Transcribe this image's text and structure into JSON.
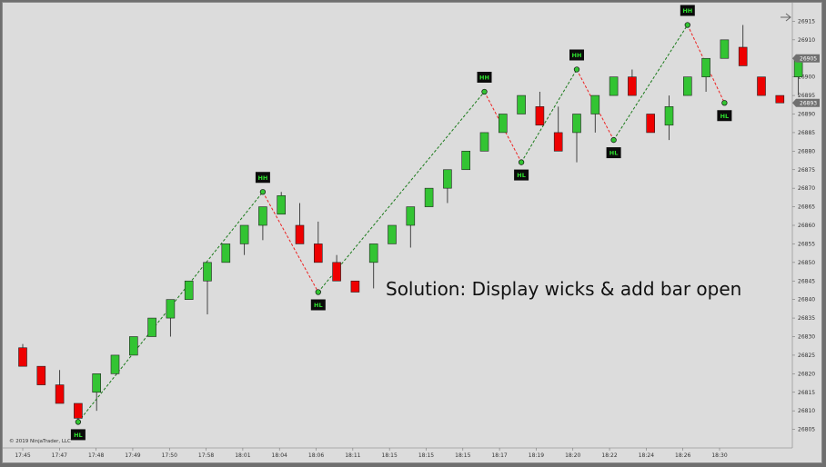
{
  "chart_data": {
    "type": "candlestick",
    "ylim": [
      26800,
      26920
    ],
    "y_ticks": [
      26805,
      26810,
      26815,
      26820,
      26825,
      26830,
      26835,
      26840,
      26845,
      26850,
      26855,
      26860,
      26865,
      26870,
      26875,
      26880,
      26885,
      26890,
      26895,
      26900,
      26905,
      26910,
      26915
    ],
    "x_labels": [
      "17:45",
      "17:47",
      "17:48",
      "17:49",
      "17:50",
      "17:58",
      "18:01",
      "18:04",
      "18:06",
      "18:11",
      "18:15",
      "18:15",
      "18:15",
      "18:17",
      "18:19",
      "18:20",
      "18:22",
      "18:24",
      "18:26",
      "18:30"
    ],
    "price_badges": [
      26905,
      26893
    ],
    "colors": {
      "up": "#33c433",
      "down": "#ee0000",
      "up_swing": "#1a7a1a",
      "down_swing": "#ee2222"
    },
    "bars": [
      {
        "o": 26827,
        "c": 26822,
        "h": 26828,
        "l": 26822
      },
      {
        "o": 26822,
        "c": 26817,
        "h": 26822,
        "l": 26817
      },
      {
        "o": 26817,
        "c": 26812,
        "h": 26821,
        "l": 26812
      },
      {
        "o": 26812,
        "c": 26808,
        "h": 26812,
        "l": 26807
      },
      {
        "o": 26815,
        "c": 26820,
        "h": 26820,
        "l": 26810
      },
      {
        "o": 26820,
        "c": 26825,
        "h": 26825,
        "l": 26820
      },
      {
        "o": 26825,
        "c": 26830,
        "h": 26830,
        "l": 26825
      },
      {
        "o": 26830,
        "c": 26835,
        "h": 26835,
        "l": 26830
      },
      {
        "o": 26835,
        "c": 26840,
        "h": 26840,
        "l": 26830
      },
      {
        "o": 26840,
        "c": 26845,
        "h": 26845,
        "l": 26840
      },
      {
        "o": 26845,
        "c": 26850,
        "h": 26850,
        "l": 26836
      },
      {
        "o": 26850,
        "c": 26855,
        "h": 26855,
        "l": 26850
      },
      {
        "o": 26855,
        "c": 26860,
        "h": 26860,
        "l": 26852
      },
      {
        "o": 26860,
        "c": 26865,
        "h": 26865,
        "l": 26856
      },
      {
        "o": 26863,
        "c": 26868,
        "h": 26869,
        "l": 26863
      },
      {
        "o": 26860,
        "c": 26855,
        "h": 26866,
        "l": 26855
      },
      {
        "o": 26855,
        "c": 26850,
        "h": 26861,
        "l": 26850
      },
      {
        "o": 26850,
        "c": 26845,
        "h": 26852,
        "l": 26845
      },
      {
        "o": 26845,
        "c": 26842,
        "h": 26845,
        "l": 26842
      },
      {
        "o": 26850,
        "c": 26855,
        "h": 26855,
        "l": 26843
      },
      {
        "o": 26855,
        "c": 26860,
        "h": 26860,
        "l": 26856
      },
      {
        "o": 26860,
        "c": 26865,
        "h": 26865,
        "l": 26854
      },
      {
        "o": 26865,
        "c": 26870,
        "h": 26870,
        "l": 26865
      },
      {
        "o": 26870,
        "c": 26875,
        "h": 26875,
        "l": 26866
      },
      {
        "o": 26875,
        "c": 26880,
        "h": 26880,
        "l": 26875
      },
      {
        "o": 26880,
        "c": 26885,
        "h": 26885,
        "l": 26880
      },
      {
        "o": 26885,
        "c": 26890,
        "h": 26890,
        "l": 26885
      },
      {
        "o": 26890,
        "c": 26895,
        "h": 26895,
        "l": 26890
      },
      {
        "o": 26892,
        "c": 26887,
        "h": 26896,
        "l": 26887
      },
      {
        "o": 26885,
        "c": 26880,
        "h": 26892,
        "l": 26880
      },
      {
        "o": 26885,
        "c": 26890,
        "h": 26890,
        "l": 26877
      },
      {
        "o": 26890,
        "c": 26895,
        "h": 26895,
        "l": 26885
      },
      {
        "o": 26895,
        "c": 26900,
        "h": 26900,
        "l": 26895
      },
      {
        "o": 26900,
        "c": 26895,
        "h": 26902,
        "l": 26895
      },
      {
        "o": 26890,
        "c": 26885,
        "h": 26890,
        "l": 26885
      },
      {
        "o": 26887,
        "c": 26892,
        "h": 26895,
        "l": 26883
      },
      {
        "o": 26895,
        "c": 26900,
        "h": 26900,
        "l": 26895
      },
      {
        "o": 26900,
        "c": 26905,
        "h": 26905,
        "l": 26896
      },
      {
        "o": 26905,
        "c": 26910,
        "h": 26910,
        "l": 26905
      },
      {
        "o": 26908,
        "c": 26903,
        "h": 26914,
        "l": 26903
      },
      {
        "o": 26900,
        "c": 26895,
        "h": 26900,
        "l": 26895
      },
      {
        "o": 26895,
        "c": 26893,
        "h": 26895,
        "l": 26893
      },
      {
        "o": 26900,
        "c": 26905,
        "h": 26905,
        "l": 26895
      }
    ],
    "swings": [
      {
        "bar": 3,
        "price": 26807,
        "label": "HL"
      },
      {
        "bar": 13,
        "price": 26869,
        "label": "HH"
      },
      {
        "bar": 16,
        "price": 26842,
        "label": "HL"
      },
      {
        "bar": 25,
        "price": 26896,
        "label": "HH"
      },
      {
        "bar": 27,
        "price": 26877,
        "label": "HL"
      },
      {
        "bar": 30,
        "price": 26902,
        "label": "HH"
      },
      {
        "bar": 32,
        "price": 26883,
        "label": "HL"
      },
      {
        "bar": 36,
        "price": 26914,
        "label": "HH"
      },
      {
        "bar": 38,
        "price": 26893,
        "label": "HL"
      }
    ],
    "annotation": "Solution: Display wicks & add bar open",
    "copyright": "© 2019 NinjaTrader, LLC"
  }
}
